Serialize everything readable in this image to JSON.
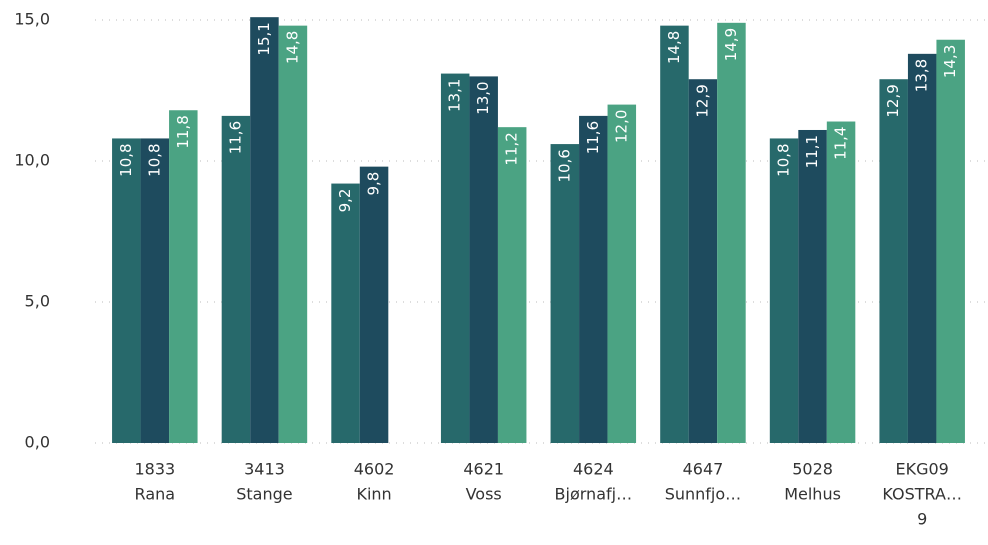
{
  "chart_data": {
    "type": "bar",
    "categories": [
      [
        "1833",
        "Rana"
      ],
      [
        "3413",
        "Stange"
      ],
      [
        "4602",
        "Kinn"
      ],
      [
        "4621",
        "Voss"
      ],
      [
        "4624",
        "Bjørnafj…"
      ],
      [
        "4647",
        "Sunnfjo…"
      ],
      [
        "5028",
        "Melhus"
      ],
      [
        "EKG09",
        "KOSTRA…",
        "9"
      ]
    ],
    "series": [
      {
        "color": "#27696b",
        "values": [
          10.8,
          11.6,
          9.2,
          13.1,
          10.6,
          14.8,
          10.8,
          12.9
        ],
        "value_labels": [
          "10,8",
          "11,6",
          "9,2",
          "13,1",
          "10,6",
          "14,8",
          "10,8",
          "12,9"
        ]
      },
      {
        "color": "#1e4b5e",
        "values": [
          10.8,
          15.1,
          9.8,
          13.0,
          11.6,
          12.9,
          11.1,
          13.8
        ],
        "value_labels": [
          "10,8",
          "15,1",
          "9,8",
          "13,0",
          "11,6",
          "12,9",
          "11,1",
          "13,8"
        ]
      },
      {
        "color": "#4ba383",
        "values": [
          11.8,
          14.8,
          null,
          11.2,
          12.0,
          14.9,
          11.4,
          14.3
        ],
        "value_labels": [
          "11,8",
          "14,8",
          null,
          "11,2",
          "12,0",
          "14,9",
          "11,4",
          "14,3"
        ]
      }
    ],
    "ylim": [
      0,
      15
    ],
    "yticks": [
      {
        "value": 0,
        "label": "0,0"
      },
      {
        "value": 5,
        "label": "5,0"
      },
      {
        "value": 10,
        "label": "10,0"
      },
      {
        "value": 15,
        "label": "15,0"
      }
    ],
    "grid": true
  }
}
